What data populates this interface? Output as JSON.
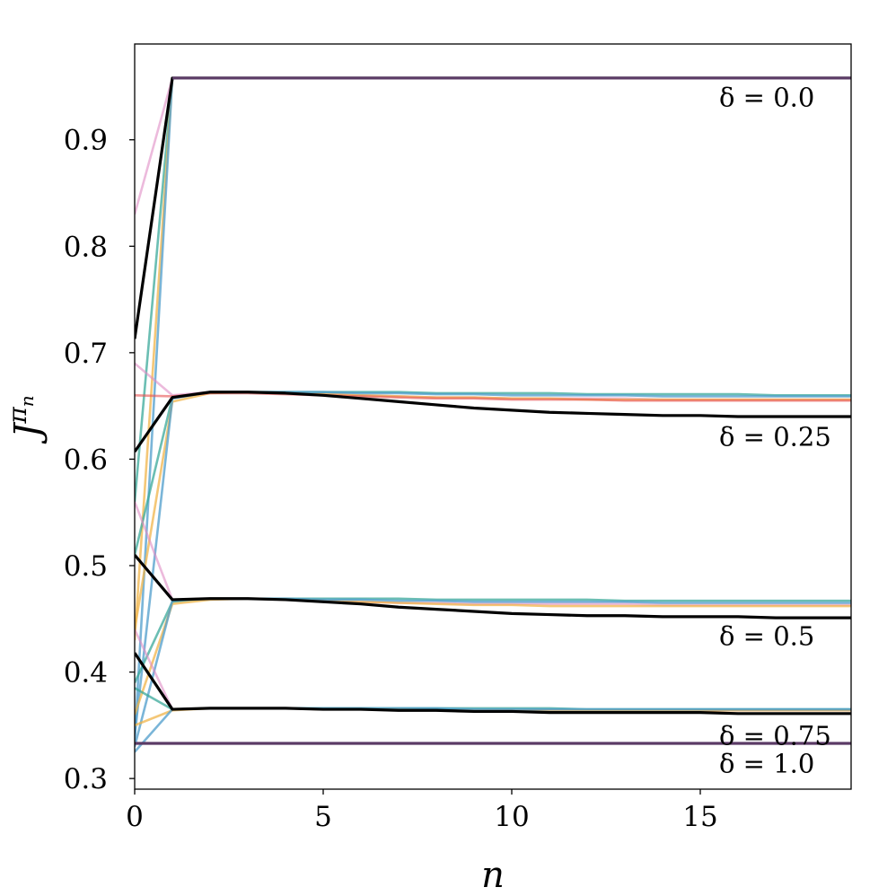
{
  "chart_data": {
    "type": "line",
    "xlabel": "n",
    "ylabel": "J",
    "ylabel_superscript": "π",
    "ylabel_subscript": "n",
    "xlim": [
      0,
      19
    ],
    "ylim": [
      0.29,
      0.99
    ],
    "xticks": [
      0,
      5,
      10,
      15
    ],
    "xtick_labels": [
      "0",
      "5",
      "10",
      "15"
    ],
    "yticks": [
      0.3,
      0.4,
      0.5,
      0.6,
      0.7,
      0.8,
      0.9
    ],
    "ytick_labels": [
      "0.3",
      "0.4",
      "0.5",
      "0.6",
      "0.7",
      "0.8",
      "0.9"
    ],
    "grid": false,
    "legend": "none",
    "x": [
      0,
      1,
      2,
      3,
      4,
      5,
      6,
      7,
      8,
      9,
      10,
      11,
      12,
      13,
      14,
      15,
      16,
      17,
      18,
      19
    ],
    "palette": {
      "black": "#000000",
      "teal": "#3aa89a",
      "blue": "#4e9ccb",
      "orange": "#f0b44a",
      "pink": "#e08cc5",
      "red": "#e85050",
      "purple": "#5b3b66"
    },
    "annotations": [
      {
        "label": "δ = 0.0",
        "x": 15.5,
        "y": 0.94
      },
      {
        "label": "δ = 0.25",
        "x": 15.5,
        "y": 0.621
      },
      {
        "label": "δ = 0.5",
        "x": 15.5,
        "y": 0.434
      },
      {
        "label": "δ = 0.75",
        "x": 15.5,
        "y": 0.34
      },
      {
        "label": "δ = 1.0",
        "x": 15.5,
        "y": 0.314
      }
    ],
    "series": [
      {
        "color": "pink",
        "opacity": 0.6,
        "y": [
          0.83,
          0.958,
          0.958,
          0.958,
          0.958,
          0.958,
          0.958,
          0.958,
          0.958,
          0.958,
          0.958,
          0.958,
          0.958,
          0.958,
          0.958,
          0.958,
          0.958,
          0.958,
          0.958,
          0.958
        ]
      },
      {
        "color": "teal",
        "opacity": 0.75,
        "y": [
          0.56,
          0.958,
          0.958,
          0.958,
          0.958,
          0.958,
          0.958,
          0.958,
          0.958,
          0.958,
          0.958,
          0.958,
          0.958,
          0.958,
          0.958,
          0.958,
          0.958,
          0.958,
          0.958,
          0.958
        ]
      },
      {
        "color": "orange",
        "opacity": 0.75,
        "y": [
          0.43,
          0.958,
          0.958,
          0.958,
          0.958,
          0.958,
          0.958,
          0.958,
          0.958,
          0.958,
          0.958,
          0.958,
          0.958,
          0.958,
          0.958,
          0.958,
          0.958,
          0.958,
          0.958,
          0.958
        ]
      },
      {
        "color": "blue",
        "opacity": 0.75,
        "y": [
          0.335,
          0.958,
          0.958,
          0.958,
          0.958,
          0.958,
          0.958,
          0.958,
          0.958,
          0.958,
          0.958,
          0.958,
          0.958,
          0.958,
          0.958,
          0.958,
          0.958,
          0.958,
          0.958,
          0.958
        ]
      },
      {
        "color": "black",
        "opacity": 1,
        "width": 3.2,
        "y": [
          0.713,
          0.958,
          0.958,
          0.958,
          0.958,
          0.958,
          0.958,
          0.958,
          0.958,
          0.958,
          0.958,
          0.958,
          0.958,
          0.958,
          0.958,
          0.958,
          0.958,
          0.958,
          0.958,
          0.958
        ]
      },
      {
        "color": "purple",
        "opacity": 1,
        "width": 3.2,
        "y": [
          0.958,
          0.958,
          0.958,
          0.958,
          0.958,
          0.958,
          0.958,
          0.958,
          0.958,
          0.958,
          0.958,
          0.958,
          0.958,
          0.958,
          0.958,
          0.958,
          0.958,
          0.958,
          0.958,
          0.958
        ],
        "x_start": 1
      },
      {
        "color": "pink",
        "opacity": 0.6,
        "y": [
          0.69,
          0.66,
          0.663,
          0.663,
          0.662,
          0.661,
          0.66,
          0.659,
          0.658,
          0.658,
          0.657,
          0.657,
          0.657,
          0.657,
          0.656,
          0.656,
          0.656,
          0.656,
          0.656,
          0.656
        ]
      },
      {
        "color": "teal",
        "opacity": 0.75,
        "y": [
          0.51,
          0.658,
          0.663,
          0.663,
          0.663,
          0.663,
          0.663,
          0.663,
          0.662,
          0.662,
          0.662,
          0.662,
          0.661,
          0.661,
          0.661,
          0.661,
          0.661,
          0.66,
          0.66,
          0.66
        ]
      },
      {
        "color": "orange",
        "opacity": 0.75,
        "y": [
          0.44,
          0.654,
          0.662,
          0.663,
          0.662,
          0.661,
          0.66,
          0.659,
          0.658,
          0.658,
          0.657,
          0.657,
          0.656,
          0.656,
          0.656,
          0.656,
          0.656,
          0.656,
          0.656,
          0.656
        ]
      },
      {
        "color": "blue",
        "opacity": 0.75,
        "y": [
          0.34,
          0.657,
          0.663,
          0.663,
          0.663,
          0.663,
          0.662,
          0.662,
          0.661,
          0.661,
          0.66,
          0.66,
          0.66,
          0.66,
          0.659,
          0.659,
          0.659,
          0.659,
          0.659,
          0.659
        ]
      },
      {
        "color": "red",
        "opacity": 0.6,
        "y": [
          0.66,
          0.659,
          0.662,
          0.662,
          0.661,
          0.66,
          0.659,
          0.658,
          0.657,
          0.657,
          0.656,
          0.656,
          0.656,
          0.655,
          0.655,
          0.655,
          0.655,
          0.655,
          0.655,
          0.655
        ]
      },
      {
        "color": "black",
        "opacity": 1,
        "width": 3.2,
        "y": [
          0.607,
          0.658,
          0.663,
          0.663,
          0.662,
          0.66,
          0.657,
          0.654,
          0.651,
          0.648,
          0.646,
          0.644,
          0.643,
          0.642,
          0.641,
          0.641,
          0.64,
          0.64,
          0.64,
          0.64
        ]
      },
      {
        "color": "pink",
        "opacity": 0.6,
        "y": [
          0.56,
          0.468,
          0.469,
          0.469,
          0.468,
          0.467,
          0.466,
          0.465,
          0.465,
          0.464,
          0.464,
          0.464,
          0.464,
          0.464,
          0.463,
          0.463,
          0.463,
          0.463,
          0.463,
          0.463
        ]
      },
      {
        "color": "teal",
        "opacity": 0.75,
        "y": [
          0.39,
          0.466,
          0.469,
          0.469,
          0.469,
          0.469,
          0.469,
          0.469,
          0.468,
          0.468,
          0.468,
          0.468,
          0.468,
          0.467,
          0.467,
          0.467,
          0.467,
          0.467,
          0.467,
          0.467
        ]
      },
      {
        "color": "orange",
        "opacity": 0.75,
        "y": [
          0.36,
          0.464,
          0.468,
          0.469,
          0.468,
          0.467,
          0.466,
          0.465,
          0.464,
          0.463,
          0.463,
          0.462,
          0.462,
          0.462,
          0.462,
          0.462,
          0.462,
          0.462,
          0.462,
          0.462
        ]
      },
      {
        "color": "blue",
        "opacity": 0.75,
        "y": [
          0.33,
          0.467,
          0.469,
          0.469,
          0.469,
          0.468,
          0.468,
          0.467,
          0.467,
          0.466,
          0.466,
          0.466,
          0.466,
          0.466,
          0.465,
          0.465,
          0.465,
          0.465,
          0.465,
          0.465
        ]
      },
      {
        "color": "black",
        "opacity": 1,
        "width": 3.2,
        "y": [
          0.51,
          0.468,
          0.469,
          0.469,
          0.468,
          0.466,
          0.464,
          0.461,
          0.459,
          0.457,
          0.455,
          0.454,
          0.453,
          0.453,
          0.452,
          0.452,
          0.452,
          0.451,
          0.451,
          0.451
        ]
      },
      {
        "color": "pink",
        "opacity": 0.6,
        "y": [
          0.44,
          0.365,
          0.366,
          0.366,
          0.366,
          0.365,
          0.365,
          0.365,
          0.364,
          0.364,
          0.364,
          0.364,
          0.364,
          0.364,
          0.364,
          0.364,
          0.364,
          0.364,
          0.364,
          0.364
        ]
      },
      {
        "color": "teal",
        "opacity": 0.75,
        "y": [
          0.385,
          0.365,
          0.366,
          0.366,
          0.366,
          0.366,
          0.366,
          0.366,
          0.366,
          0.366,
          0.366,
          0.366,
          0.365,
          0.365,
          0.365,
          0.365,
          0.365,
          0.365,
          0.365,
          0.365
        ]
      },
      {
        "color": "orange",
        "opacity": 0.75,
        "y": [
          0.35,
          0.364,
          0.366,
          0.366,
          0.366,
          0.365,
          0.365,
          0.365,
          0.364,
          0.364,
          0.364,
          0.364,
          0.364,
          0.364,
          0.364,
          0.364,
          0.364,
          0.364,
          0.364,
          0.364
        ]
      },
      {
        "color": "blue",
        "opacity": 0.75,
        "y": [
          0.325,
          0.365,
          0.366,
          0.366,
          0.366,
          0.366,
          0.366,
          0.366,
          0.366,
          0.365,
          0.365,
          0.365,
          0.365,
          0.365,
          0.365,
          0.365,
          0.365,
          0.365,
          0.365,
          0.365
        ]
      },
      {
        "color": "black",
        "opacity": 1,
        "width": 3.2,
        "y": [
          0.418,
          0.365,
          0.366,
          0.366,
          0.366,
          0.365,
          0.365,
          0.364,
          0.364,
          0.363,
          0.363,
          0.362,
          0.362,
          0.362,
          0.362,
          0.362,
          0.361,
          0.361,
          0.361,
          0.361
        ]
      },
      {
        "color": "purple",
        "opacity": 1,
        "width": 3.2,
        "y": [
          0.333,
          0.333,
          0.333,
          0.333,
          0.333,
          0.333,
          0.333,
          0.333,
          0.333,
          0.333,
          0.333,
          0.333,
          0.333,
          0.333,
          0.333,
          0.333,
          0.333,
          0.333,
          0.333,
          0.333
        ]
      }
    ]
  }
}
